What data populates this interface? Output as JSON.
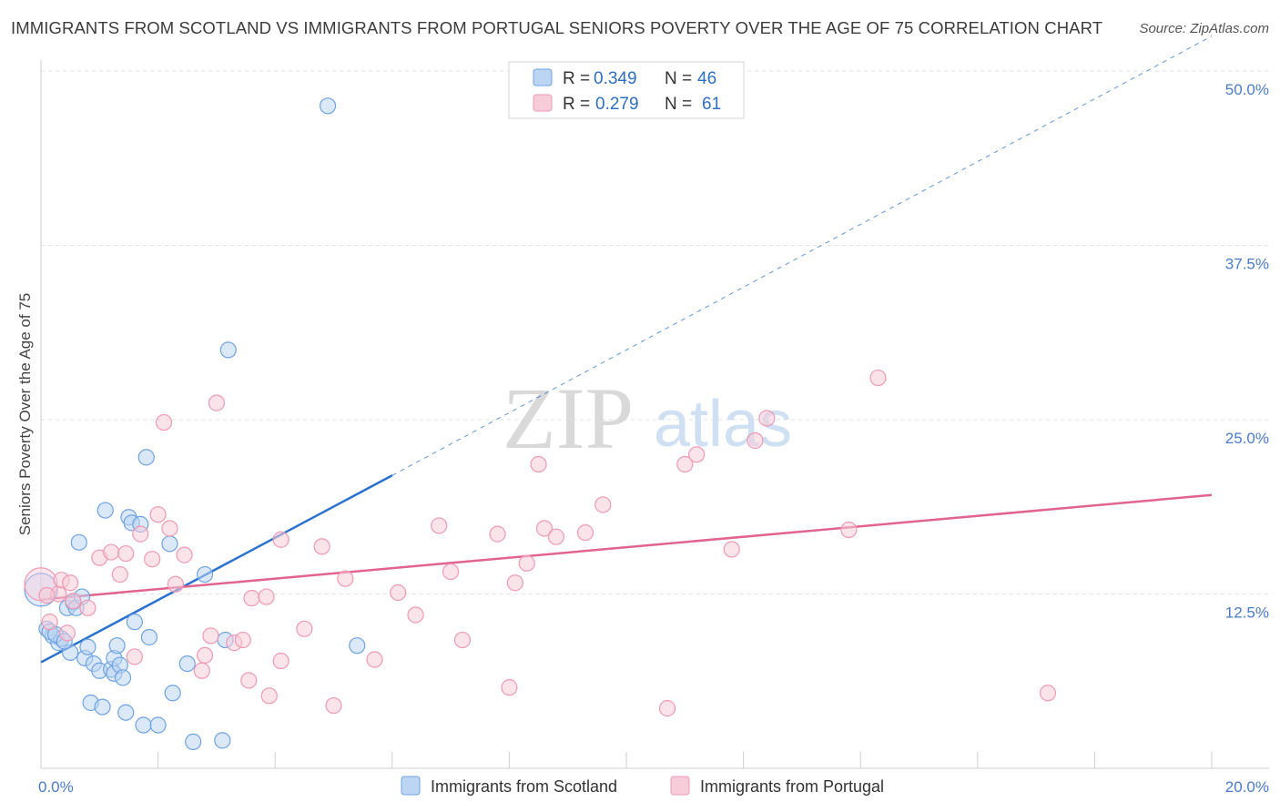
{
  "chart_data": {
    "type": "scatter",
    "title": "IMMIGRANTS FROM SCOTLAND VS IMMIGRANTS FROM PORTUGAL SENIORS POVERTY OVER THE AGE OF 75 CORRELATION CHART",
    "source": "Source: ZipAtlas.com",
    "xlabel": "",
    "ylabel": "Seniors Poverty Over the Age of 75",
    "xlim": [
      0,
      20
    ],
    "ylim": [
      0,
      50
    ],
    "x_tick_labels": [
      "0.0%",
      "20.0%"
    ],
    "y_ticks": [
      12.5,
      25.0,
      37.5,
      50.0
    ],
    "y_tick_labels": [
      "12.5%",
      "25.0%",
      "37.5%",
      "50.0%"
    ],
    "watermark": {
      "zip": "ZIP",
      "atlas": "atlas"
    },
    "legend": [
      {
        "r_label": "R =",
        "r_value": "0.349",
        "n_label": "N =",
        "n_value": "46"
      },
      {
        "r_label": "R =",
        "r_value": "0.279",
        "n_label": "N =",
        "n_value": "61"
      }
    ],
    "series": [
      {
        "name": "Immigrants from Scotland",
        "color": "#6fa3e3",
        "fill": "#bcd5f3",
        "line_color": "#2a72cf",
        "trend": {
          "x0": 0,
          "y0": 7.6,
          "x1": 6.0,
          "y1": 21.0,
          "x_ext": 20,
          "y_ext": 52.5
        },
        "points": [
          [
            0.0,
            12.8
          ],
          [
            0.1,
            10.0
          ],
          [
            0.2,
            9.5
          ],
          [
            0.3,
            9.0
          ],
          [
            0.35,
            9.3
          ],
          [
            0.45,
            11.5
          ],
          [
            0.5,
            8.3
          ],
          [
            0.55,
            11.9
          ],
          [
            0.6,
            11.5
          ],
          [
            0.65,
            16.2
          ],
          [
            0.7,
            12.3
          ],
          [
            0.75,
            7.9
          ],
          [
            0.8,
            8.7
          ],
          [
            0.85,
            4.7
          ],
          [
            0.9,
            7.5
          ],
          [
            1.0,
            7.0
          ],
          [
            1.05,
            4.4
          ],
          [
            1.1,
            18.5
          ],
          [
            1.2,
            7.1
          ],
          [
            1.25,
            6.8
          ],
          [
            1.25,
            7.9
          ],
          [
            1.3,
            8.8
          ],
          [
            1.35,
            7.4
          ],
          [
            1.4,
            6.5
          ],
          [
            1.45,
            4.0
          ],
          [
            1.5,
            18.0
          ],
          [
            1.55,
            17.6
          ],
          [
            1.6,
            10.5
          ],
          [
            1.7,
            17.5
          ],
          [
            1.75,
            3.1
          ],
          [
            1.8,
            22.3
          ],
          [
            1.85,
            9.4
          ],
          [
            2.0,
            3.1
          ],
          [
            2.2,
            16.1
          ],
          [
            2.25,
            5.4
          ],
          [
            2.5,
            7.5
          ],
          [
            2.6,
            1.9
          ],
          [
            2.8,
            13.9
          ],
          [
            3.1,
            2.0
          ],
          [
            3.15,
            9.2
          ],
          [
            3.2,
            30.0
          ],
          [
            4.9,
            47.5
          ],
          [
            5.4,
            8.8
          ],
          [
            0.15,
            9.8
          ],
          [
            0.25,
            9.6
          ],
          [
            0.4,
            9.1
          ]
        ]
      },
      {
        "name": "Immigrants from Portugal",
        "color": "#ee9ab4",
        "fill": "#f8ccd9",
        "line_color": "#e0648e",
        "trend": {
          "x0": 0,
          "y0": 12.1,
          "x1": 20,
          "y1": 19.6
        },
        "points": [
          [
            0.0,
            13.2
          ],
          [
            0.15,
            10.5
          ],
          [
            0.3,
            12.5
          ],
          [
            0.35,
            13.5
          ],
          [
            0.45,
            9.7
          ],
          [
            0.5,
            13.3
          ],
          [
            0.8,
            11.5
          ],
          [
            1.0,
            15.1
          ],
          [
            1.2,
            15.5
          ],
          [
            1.35,
            13.9
          ],
          [
            1.45,
            15.4
          ],
          [
            1.6,
            8.0
          ],
          [
            1.7,
            16.8
          ],
          [
            1.9,
            15.0
          ],
          [
            2.0,
            18.2
          ],
          [
            2.1,
            24.8
          ],
          [
            2.2,
            17.2
          ],
          [
            2.3,
            13.2
          ],
          [
            2.45,
            15.3
          ],
          [
            2.75,
            7.0
          ],
          [
            2.8,
            8.1
          ],
          [
            2.9,
            9.5
          ],
          [
            3.0,
            26.2
          ],
          [
            3.3,
            9.0
          ],
          [
            3.45,
            9.2
          ],
          [
            3.55,
            6.3
          ],
          [
            3.6,
            12.2
          ],
          [
            3.85,
            12.3
          ],
          [
            3.9,
            5.2
          ],
          [
            4.1,
            7.7
          ],
          [
            4.1,
            16.4
          ],
          [
            4.5,
            10.0
          ],
          [
            4.8,
            15.9
          ],
          [
            5.0,
            4.5
          ],
          [
            5.2,
            13.6
          ],
          [
            5.7,
            7.8
          ],
          [
            6.1,
            12.6
          ],
          [
            6.4,
            11.0
          ],
          [
            6.8,
            17.4
          ],
          [
            7.0,
            14.1
          ],
          [
            7.2,
            9.2
          ],
          [
            7.8,
            16.8
          ],
          [
            8.0,
            5.8
          ],
          [
            8.1,
            13.3
          ],
          [
            8.3,
            14.7
          ],
          [
            8.5,
            21.8
          ],
          [
            8.6,
            17.2
          ],
          [
            8.8,
            16.6
          ],
          [
            9.3,
            16.9
          ],
          [
            9.6,
            18.9
          ],
          [
            10.7,
            4.3
          ],
          [
            11.0,
            21.8
          ],
          [
            11.2,
            22.5
          ],
          [
            11.8,
            15.7
          ],
          [
            12.2,
            23.5
          ],
          [
            12.4,
            25.1
          ],
          [
            13.8,
            17.1
          ],
          [
            14.3,
            28.0
          ],
          [
            17.2,
            5.4
          ],
          [
            0.1,
            12.4
          ],
          [
            0.55,
            12.0
          ]
        ]
      }
    ]
  }
}
